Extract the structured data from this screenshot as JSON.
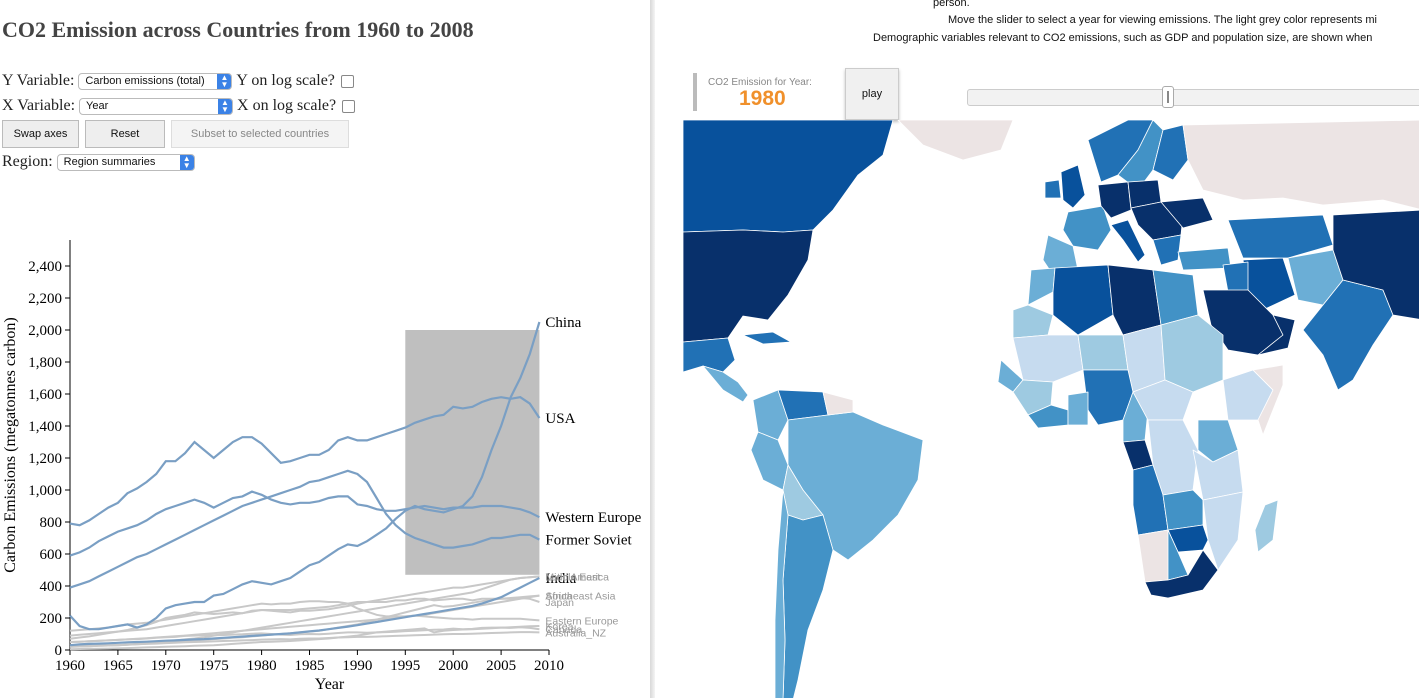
{
  "left": {
    "title": "CO2 Emission across Countries from 1960 to 2008",
    "y_variable": {
      "label": "Y Variable:",
      "selected": "Carbon emissions (total)",
      "log_label": "Y on log scale?"
    },
    "x_variable": {
      "label": "X Variable:",
      "selected": "Year",
      "log_label": "X on log scale?"
    },
    "buttons": {
      "swap": "Swap axes",
      "reset": "Reset",
      "subset": "Subset to selected countries"
    },
    "region": {
      "label": "Region:",
      "selected": "Region summaries"
    }
  },
  "chart_data": {
    "type": "line",
    "xlabel": "Year",
    "ylabel": "Carbon Emissions (megatonnes carbon)",
    "xlim": [
      1960,
      2010
    ],
    "ylim": [
      0,
      2500
    ],
    "x_ticks": [
      "1960",
      "1965",
      "1970",
      "1975",
      "1980",
      "1985",
      "1990",
      "1995",
      "2000",
      "2005",
      "2010"
    ],
    "y_ticks": [
      "0",
      "200",
      "400",
      "600",
      "800",
      "1,000",
      "1,200",
      "1,400",
      "1,600",
      "1,800",
      "2,000",
      "2,200",
      "2,400"
    ],
    "selection_box": {
      "x": [
        1995,
        2009
      ],
      "y": [
        470,
        2000
      ]
    },
    "highlight_color": "#7a9fc4",
    "muted_color": "#c8c8c8",
    "x": [
      1960,
      1961,
      1962,
      1963,
      1964,
      1965,
      1966,
      1967,
      1968,
      1969,
      1970,
      1971,
      1972,
      1973,
      1974,
      1975,
      1976,
      1977,
      1978,
      1979,
      1980,
      1981,
      1982,
      1983,
      1984,
      1985,
      1986,
      1987,
      1988,
      1989,
      1990,
      1991,
      1992,
      1993,
      1994,
      1995,
      1996,
      1997,
      1998,
      1999,
      2000,
      2001,
      2002,
      2003,
      2004,
      2005,
      2006,
      2007,
      2008,
      2009
    ],
    "series": [
      {
        "name": "China",
        "highlight": true,
        "values": [
          215,
          150,
          130,
          130,
          140,
          150,
          160,
          140,
          160,
          200,
          260,
          280,
          290,
          300,
          300,
          340,
          350,
          380,
          410,
          430,
          420,
          410,
          430,
          450,
          490,
          530,
          550,
          590,
          630,
          660,
          650,
          680,
          720,
          760,
          820,
          870,
          900,
          880,
          870,
          860,
          880,
          900,
          960,
          1080,
          1250,
          1400,
          1580,
          1700,
          1850,
          2050
        ]
      },
      {
        "name": "USA",
        "highlight": true,
        "values": [
          790,
          780,
          810,
          850,
          890,
          920,
          980,
          1010,
          1050,
          1100,
          1180,
          1180,
          1230,
          1300,
          1250,
          1200,
          1250,
          1300,
          1330,
          1330,
          1290,
          1230,
          1170,
          1180,
          1200,
          1220,
          1220,
          1250,
          1310,
          1330,
          1310,
          1310,
          1330,
          1350,
          1370,
          1390,
          1420,
          1440,
          1460,
          1470,
          1520,
          1510,
          1520,
          1550,
          1570,
          1580,
          1570,
          1580,
          1540,
          1450
        ]
      },
      {
        "name": "Western Europe",
        "highlight": true,
        "values": [
          590,
          610,
          640,
          680,
          710,
          740,
          760,
          780,
          810,
          850,
          880,
          900,
          920,
          940,
          920,
          890,
          920,
          950,
          960,
          990,
          970,
          940,
          920,
          910,
          920,
          920,
          930,
          950,
          960,
          960,
          910,
          900,
          880,
          870,
          870,
          880,
          890,
          900,
          890,
          880,
          890,
          890,
          890,
          900,
          900,
          900,
          890,
          880,
          860,
          830
        ]
      },
      {
        "name": "Former Soviet",
        "highlight": true,
        "values": [
          390,
          410,
          430,
          460,
          490,
          520,
          550,
          580,
          600,
          630,
          660,
          690,
          720,
          750,
          780,
          810,
          840,
          870,
          900,
          920,
          940,
          960,
          980,
          1000,
          1020,
          1050,
          1060,
          1080,
          1100,
          1120,
          1100,
          1050,
          950,
          850,
          780,
          730,
          700,
          680,
          660,
          640,
          640,
          650,
          660,
          680,
          700,
          700,
          710,
          720,
          720,
          690
        ]
      },
      {
        "name": "India",
        "highlight": true,
        "values": [
          30,
          35,
          38,
          40,
          42,
          45,
          48,
          50,
          52,
          55,
          58,
          60,
          63,
          66,
          68,
          72,
          76,
          80,
          84,
          88,
          92,
          96,
          100,
          104,
          110,
          116,
          122,
          130,
          138,
          146,
          155,
          165,
          175,
          185,
          195,
          205,
          215,
          225,
          235,
          245,
          255,
          265,
          275,
          290,
          310,
          330,
          360,
          390,
          420,
          450
        ]
      },
      {
        "name": "Middle East",
        "values": [
          20,
          22,
          24,
          26,
          28,
          30,
          34,
          38,
          42,
          48,
          54,
          60,
          66,
          72,
          80,
          90,
          100,
          110,
          120,
          130,
          140,
          150,
          160,
          170,
          180,
          190,
          200,
          210,
          220,
          230,
          240,
          250,
          260,
          270,
          280,
          290,
          300,
          310,
          320,
          330,
          340,
          350,
          360,
          380,
          400,
          420,
          440,
          450,
          455,
          460
        ]
      },
      {
        "name": "Latin America",
        "values": [
          90,
          95,
          100,
          105,
          110,
          115,
          120,
          125,
          130,
          140,
          150,
          160,
          170,
          180,
          190,
          200,
          210,
          220,
          230,
          240,
          250,
          250,
          250,
          250,
          255,
          260,
          265,
          270,
          280,
          290,
          300,
          300,
          310,
          320,
          330,
          340,
          350,
          360,
          370,
          380,
          390,
          390,
          400,
          410,
          420,
          430,
          440,
          450,
          455,
          460
        ]
      },
      {
        "name": "Africa",
        "values": [
          50,
          52,
          55,
          58,
          60,
          63,
          66,
          70,
          74,
          78,
          82,
          86,
          90,
          95,
          100,
          105,
          110,
          115,
          120,
          125,
          130,
          135,
          140,
          145,
          150,
          155,
          160,
          165,
          170,
          175,
          180,
          185,
          190,
          195,
          200,
          210,
          215,
          220,
          230,
          240,
          250,
          260,
          270,
          280,
          290,
          300,
          310,
          320,
          330,
          340
        ]
      },
      {
        "name": "Southeast Asia",
        "values": [
          20,
          22,
          24,
          26,
          28,
          30,
          33,
          36,
          40,
          44,
          48,
          52,
          56,
          60,
          64,
          68,
          72,
          76,
          80,
          85,
          90,
          95,
          100,
          105,
          110,
          115,
          120,
          130,
          140,
          150,
          160,
          175,
          190,
          205,
          220,
          235,
          250,
          265,
          280,
          270,
          275,
          285,
          295,
          305,
          315,
          320,
          325,
          330,
          335,
          340
        ]
      },
      {
        "name": "Japan",
        "values": [
          70,
          78,
          85,
          95,
          105,
          115,
          125,
          140,
          155,
          175,
          200,
          210,
          220,
          235,
          230,
          225,
          230,
          235,
          230,
          245,
          250,
          245,
          240,
          235,
          245,
          245,
          250,
          255,
          265,
          275,
          290,
          300,
          300,
          300,
          310,
          310,
          320,
          320,
          310,
          315,
          320,
          320,
          310,
          320,
          320,
          320,
          320,
          325,
          320,
          300
        ]
      },
      {
        "name": "Eastern Europe",
        "values": [
          120,
          125,
          130,
          135,
          140,
          150,
          160,
          165,
          170,
          180,
          190,
          200,
          210,
          220,
          230,
          240,
          250,
          260,
          270,
          280,
          290,
          285,
          290,
          290,
          300,
          305,
          305,
          300,
          300,
          290,
          260,
          240,
          220,
          210,
          210,
          210,
          215,
          210,
          205,
          200,
          195,
          195,
          190,
          195,
          195,
          195,
          195,
          195,
          190,
          185
        ]
      },
      {
        "name": "Korea",
        "values": [
          5,
          6,
          7,
          8,
          9,
          10,
          12,
          14,
          16,
          18,
          20,
          22,
          24,
          26,
          28,
          30,
          34,
          38,
          42,
          46,
          50,
          52,
          54,
          56,
          60,
          64,
          68,
          72,
          78,
          84,
          90,
          100,
          110,
          115,
          120,
          125,
          130,
          135,
          110,
          120,
          125,
          128,
          130,
          133,
          136,
          140,
          142,
          145,
          148,
          150
        ]
      },
      {
        "name": "Canada",
        "values": [
          50,
          52,
          55,
          57,
          60,
          63,
          66,
          68,
          72,
          76,
          80,
          82,
          88,
          90,
          92,
          92,
          94,
          96,
          98,
          102,
          104,
          100,
          96,
          94,
          98,
          100,
          98,
          102,
          106,
          110,
          110,
          108,
          110,
          112,
          114,
          118,
          120,
          124,
          126,
          128,
          134,
          130,
          132,
          138,
          140,
          140,
          138,
          142,
          138,
          130
        ]
      },
      {
        "name": "Australia_NZ",
        "values": [
          25,
          26,
          27,
          28,
          30,
          32,
          34,
          36,
          38,
          40,
          43,
          45,
          48,
          50,
          52,
          54,
          56,
          58,
          60,
          62,
          65,
          66,
          68,
          66,
          70,
          72,
          72,
          75,
          78,
          80,
          82,
          82,
          84,
          86,
          88,
          90,
          92,
          94,
          96,
          98,
          100,
          100,
          102,
          104,
          106,
          108,
          110,
          112,
          112,
          110
        ]
      }
    ]
  },
  "right": {
    "instruction_1": "person.",
    "instruction_2": "Move the slider to select a year for viewing emissions. The light grey color represents mi",
    "instruction_3": "Demographic variables relevant to CO2 emissions, such as GDP and population size, are shown when",
    "year_box_label": "CO2 Emission for Year:",
    "year": "1980",
    "play_label": "play",
    "map_colors": {
      "very_light": "#c6dbef",
      "light": "#9ecae1",
      "mid": "#6baed6",
      "med_dark": "#4292c6",
      "dark": "#2171b5",
      "darker": "#08519c",
      "darkest": "#08306b",
      "missing": "#ece4e4"
    }
  }
}
